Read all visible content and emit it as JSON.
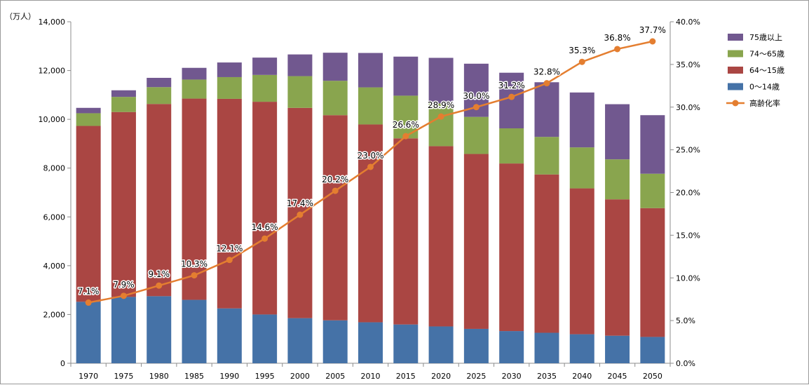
{
  "chart_data": {
    "type": "bar",
    "stacked": true,
    "unit_label": "（万人）",
    "categories": [
      "1970",
      "1975",
      "1980",
      "1985",
      "1990",
      "1995",
      "2000",
      "2005",
      "2010",
      "2015",
      "2020",
      "2025",
      "2030",
      "2035",
      "2040",
      "2045",
      "2050"
    ],
    "ylim": [
      0,
      14000
    ],
    "y_ticks": [
      "0",
      "2,000",
      "4,000",
      "6,000",
      "8,000",
      "10,000",
      "12,000",
      "14,000"
    ],
    "y2lim": [
      0,
      40
    ],
    "y2_ticks": [
      "0.0%",
      "5.0%",
      "10.0%",
      "15.0%",
      "20.0%",
      "25.0%",
      "30.0%",
      "35.0%",
      "40.0%"
    ],
    "grid": false,
    "legend_position": "right",
    "series": [
      {
        "name": "0〜14歳",
        "color": "#4572A7",
        "values": [
          2520,
          2720,
          2750,
          2600,
          2250,
          2000,
          1850,
          1760,
          1680,
          1590,
          1510,
          1410,
          1320,
          1250,
          1190,
          1130,
          1080
        ]
      },
      {
        "name": "64〜15歳",
        "color": "#AA4643",
        "values": [
          7210,
          7580,
          7880,
          8250,
          8590,
          8720,
          8620,
          8410,
          8110,
          7630,
          7390,
          7170,
          6870,
          6490,
          5980,
          5590,
          5280
        ]
      },
      {
        "name": "74〜65歳",
        "color": "#89A54E",
        "values": [
          520,
          620,
          690,
          780,
          890,
          1100,
          1300,
          1410,
          1520,
          1750,
          1750,
          1520,
          1440,
          1540,
          1680,
          1640,
          1410
        ]
      },
      {
        "name": "75歳以上",
        "color": "#71588F",
        "values": [
          220,
          270,
          380,
          480,
          600,
          710,
          890,
          1150,
          1410,
          1600,
          1870,
          2180,
          2280,
          2240,
          2250,
          2260,
          2400
        ]
      }
    ],
    "line_series": {
      "name": "高齢化率",
      "color": "#E47E30",
      "axis": "right",
      "values": [
        7.1,
        7.9,
        9.1,
        10.3,
        12.1,
        14.6,
        17.4,
        20.2,
        23.0,
        26.6,
        28.9,
        30.0,
        31.2,
        32.8,
        35.3,
        36.8,
        37.7
      ],
      "labels": [
        "7.1%",
        "7.9%",
        "9.1%",
        "10.3%",
        "12.1%",
        "14.6%",
        "17.4%",
        "20.2%",
        "23.0%",
        "26.6%",
        "28.9%",
        "30.0%",
        "31.2%",
        "32.8%",
        "35.3%",
        "36.8%",
        "37.7%"
      ]
    },
    "legend": [
      {
        "name": "75歳以上",
        "color": "#71588F",
        "marker": "box"
      },
      {
        "name": "74〜65歳",
        "color": "#89A54E",
        "marker": "box"
      },
      {
        "name": "64〜15歳",
        "color": "#AA4643",
        "marker": "box"
      },
      {
        "name": "0〜14歳",
        "color": "#4572A7",
        "marker": "box"
      },
      {
        "name": "高齢化率",
        "color": "#E47E30",
        "marker": "line"
      }
    ]
  }
}
